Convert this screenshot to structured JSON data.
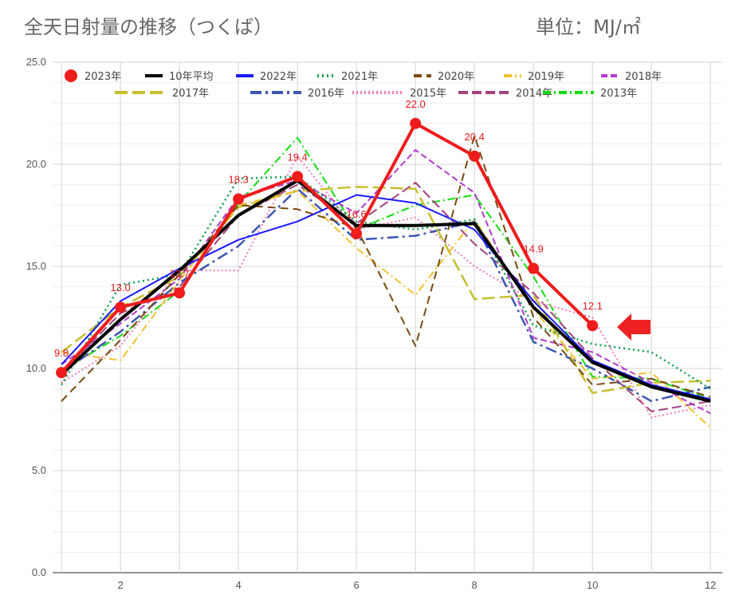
{
  "header": {
    "title": "全天日射量の推移（つくば）",
    "unit": "単位：MJ/㎡"
  },
  "colors": {
    "highlight": "#ee1c1c",
    "arrow": "#ee2222",
    "grid": "#d9d9d9"
  },
  "chart_data": {
    "type": "line",
    "x": [
      1,
      2,
      3,
      4,
      5,
      6,
      7,
      8,
      9,
      10,
      11,
      12
    ],
    "xticks": [
      "2",
      "4",
      "6",
      "8",
      "10",
      "12"
    ],
    "yticks": [
      "0.0",
      "5.0",
      "10.0",
      "15.0",
      "20.0",
      "25.0"
    ],
    "xlim": [
      0.85,
      12.2
    ],
    "ylim": [
      0,
      25
    ],
    "grid": true,
    "legend_position": "top",
    "annotation": "arrow pointing at the latest 2023 value (October)",
    "series": [
      {
        "name": "2023年",
        "color": "#ee1c1c",
        "width": 4,
        "dash": "",
        "marker": true,
        "labels": true,
        "values": [
          9.8,
          13.0,
          13.7,
          18.3,
          19.4,
          16.6,
          22.0,
          20.4,
          14.9,
          12.1,
          null,
          null
        ],
        "label_text": [
          "9.8",
          "13.0",
          "13.7",
          "18.3",
          "19.4",
          "16.6",
          "22.0",
          "20.4",
          "14.9",
          "12.1"
        ]
      },
      {
        "name": "10年平均",
        "color": "#000000",
        "width": 4,
        "dash": "",
        "values": [
          9.7,
          12.4,
          14.8,
          17.5,
          19.2,
          17.0,
          17.0,
          17.1,
          13.0,
          10.3,
          9.1,
          8.4
        ]
      },
      {
        "name": "2022年",
        "color": "#1a1aff",
        "width": 2,
        "dash": "",
        "values": [
          10.2,
          13.3,
          14.9,
          16.3,
          17.2,
          18.5,
          18.1,
          16.8,
          13.3,
          10.4,
          9.2,
          8.5
        ]
      },
      {
        "name": "2021年",
        "color": "#0e9f4f",
        "width": 2.5,
        "dash": "2 4",
        "values": [
          9.2,
          14.1,
          14.6,
          19.3,
          19.4,
          17.2,
          16.8,
          17.3,
          12.1,
          11.2,
          10.8,
          9.0
        ]
      },
      {
        "name": "2020年",
        "color": "#7a4a10",
        "width": 2,
        "dash": "10 6",
        "values": [
          8.4,
          11.4,
          14.6,
          18.0,
          17.8,
          16.9,
          11.1,
          21.4,
          12.5,
          9.2,
          9.5,
          8.6
        ]
      },
      {
        "name": "2019年",
        "color": "#f1c232",
        "width": 2,
        "dash": "10 4 2 4",
        "values": [
          10.8,
          10.4,
          14.3,
          18.0,
          18.7,
          15.9,
          13.6,
          17.3,
          12.9,
          9.5,
          9.8,
          7.1
        ]
      },
      {
        "name": "2018年",
        "color": "#b03ccd",
        "width": 2,
        "dash": "8 4",
        "values": [
          10.2,
          12.2,
          14.4,
          18.4,
          19.2,
          17.6,
          20.7,
          18.6,
          11.5,
          10.8,
          9.3,
          7.8
        ]
      },
      {
        "name": "2017年",
        "color": "#c6bf2d",
        "width": 2.5,
        "dash": "16 6",
        "values": [
          10.8,
          13.0,
          14.5,
          17.9,
          18.7,
          18.9,
          18.8,
          13.4,
          13.6,
          8.8,
          9.3,
          9.4
        ]
      },
      {
        "name": "2016年",
        "color": "#3d55b3",
        "width": 2.5,
        "dash": "14 5 3 5",
        "values": [
          9.8,
          11.8,
          14.2,
          16.0,
          18.8,
          16.3,
          16.5,
          17.2,
          11.3,
          10.0,
          8.4,
          9.1
        ]
      },
      {
        "name": "2015年",
        "color": "#f27bb4",
        "width": 2,
        "dash": "2 3",
        "values": [
          9.3,
          11.1,
          14.8,
          14.8,
          20.4,
          16.8,
          17.4,
          15.0,
          13.3,
          12.5,
          7.6,
          8.2
        ]
      },
      {
        "name": "2014年",
        "color": "#a3437d",
        "width": 2,
        "dash": "12 5",
        "values": [
          9.8,
          12.7,
          14.0,
          17.5,
          19.0,
          17.1,
          19.1,
          16.1,
          13.7,
          10.5,
          7.9,
          8.4
        ]
      },
      {
        "name": "2013年",
        "color": "#11dd11",
        "width": 2,
        "dash": "10 4 2 4",
        "values": [
          9.9,
          11.6,
          13.8,
          18.1,
          21.3,
          16.8,
          18.0,
          18.5,
          14.5,
          9.6,
          9.5,
          8.5
        ]
      }
    ]
  }
}
